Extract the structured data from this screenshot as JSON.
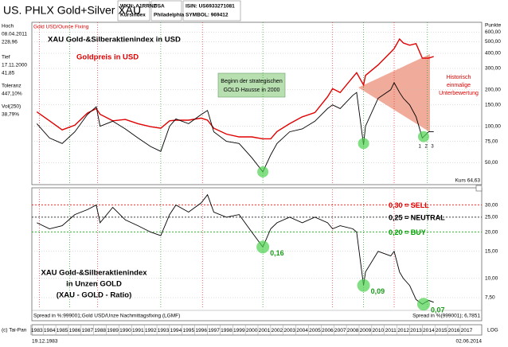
{
  "header": {
    "title": "US. PHLX Gold+Silver XAU",
    "wkn": "WKN: A1RRNZ",
    "kind": "Kursindex",
    "country": "USA",
    "exchange": "Philadelphia",
    "isin": "ISIN: US6933271081",
    "symbol": "SYMBOL: 969412"
  },
  "stats": [
    [
      "Hoch",
      "08.04.2011",
      "228,96"
    ],
    [
      "Tief",
      "17.11.2000",
      "41,85"
    ],
    [
      "Toleranz",
      "447,10%"
    ],
    [
      "Vol(250)",
      "38,79%"
    ]
  ],
  "footer": {
    "copyright": "(c) Tai-Pan",
    "start": "19.12.1983",
    "end": "02.06.2014",
    "scale": "LOG"
  },
  "chart_data": [
    {
      "type": "line",
      "y_axis_label": "Punkte",
      "log_scale": true,
      "annotations": [
        "Gold USD/Ounce Fixing",
        "Beginn der strategischen",
        "GOLD-Hausse in 2000",
        "Historisch",
        "einmalige",
        "Unterbewertung",
        "Kurs 64,63"
      ],
      "x": [
        1983,
        1984,
        1985,
        1986,
        1987,
        1987.7,
        1988,
        1989,
        1990,
        1991,
        1992,
        1992.8,
        1993.5,
        1994,
        1995,
        1996,
        1996.5,
        1997,
        1998,
        1999,
        2000,
        2000.88,
        2001.5,
        2002,
        2003,
        2004,
        2005,
        2006,
        2006.4,
        2007,
        2008,
        2008.3,
        2008.85,
        2009,
        2010,
        2011,
        2011.27,
        2011.7,
        2012,
        2012.5,
        2013,
        2013.5,
        2014,
        2014.4
      ],
      "xlim": [
        1982.6,
        2018.2
      ],
      "ylim": [
        35,
        700
      ],
      "yticks": [
        {
          "value": 50,
          "label": "50,00"
        },
        {
          "value": 75,
          "label": "75,00"
        },
        {
          "value": 100,
          "label": "100,00"
        },
        {
          "value": 150,
          "label": "150,00"
        },
        {
          "value": 200,
          "label": "200,00"
        },
        {
          "value": 300,
          "label": "300,00"
        },
        {
          "value": 400,
          "label": "400,00"
        },
        {
          "value": 500,
          "label": "500,00"
        },
        {
          "value": 600,
          "label": "600,00"
        }
      ],
      "y2lim": [
        120,
        2400
      ],
      "red_lines": [
        1983.2,
        1987.8,
        1996.1,
        2006.4,
        2011.27
      ],
      "green_lines": [
        1985.6,
        1992.8,
        2000.88,
        2008.85,
        2013.9
      ],
      "series": [
        {
          "name": "Goldpreis in USD",
          "color": "#e00000",
          "axis": "y2",
          "values": [
            450,
            380,
            320,
            350,
            440,
            480,
            430,
            380,
            390,
            360,
            340,
            330,
            380,
            385,
            385,
            400,
            385,
            330,
            295,
            280,
            280,
            270,
            270,
            310,
            360,
            410,
            445,
            600,
            700,
            650,
            870,
            950,
            750,
            900,
            1100,
            1400,
            1500,
            1800,
            1670,
            1600,
            1650,
            1250,
            1250,
            1290
          ]
        },
        {
          "name": "XAU Gold-&Silberaktienindex in USD",
          "color": "#000000",
          "values": [
            105,
            80,
            72,
            90,
            125,
            145,
            100,
            110,
            95,
            80,
            68,
            62,
            100,
            115,
            105,
            125,
            135,
            90,
            75,
            72,
            55,
            42,
            58,
            72,
            90,
            95,
            110,
            140,
            150,
            140,
            180,
            190,
            70,
            100,
            170,
            200,
            229,
            190,
            170,
            150,
            120,
            80,
            90,
            90
          ]
        }
      ],
      "markers": [
        {
          "x": 2000.88,
          "y": 42
        },
        {
          "x": 2008.85,
          "y": 72
        },
        {
          "x": 2013.6,
          "y": 82
        }
      ],
      "numbered": [
        {
          "x": 2013.3,
          "label": "1"
        },
        {
          "x": 2013.8,
          "label": "2"
        },
        {
          "x": 2014.3,
          "label": "3"
        }
      ]
    },
    {
      "type": "line",
      "log_scale": true,
      "annotations": [
        "XAU Gold-&Silberaktienindex",
        "in Unzen GOLD",
        "(XAU - GOLD - Ratio)",
        "Spread in %:999001;Gold USD/Unze Nachmittagsfixing (LGMF)",
        "Spread in %(999001); 6,7851"
      ],
      "x": [
        1983,
        1984,
        1985,
        1986,
        1987,
        1987.7,
        1988,
        1989,
        1990,
        1991,
        1992,
        1992.8,
        1993.5,
        1994,
        1995,
        1996,
        1996.5,
        1997,
        1998,
        1999,
        2000,
        2000.88,
        2001.5,
        2002,
        2003,
        2004,
        2005,
        2006,
        2006.4,
        2007,
        2008,
        2008.3,
        2008.85,
        2009,
        2010,
        2011,
        2011.27,
        2011.7,
        2012,
        2012.5,
        2013,
        2013.5,
        2014,
        2014.4
      ],
      "xlim": [
        1982.6,
        2018.2
      ],
      "xticks": [
        1983,
        1984,
        1985,
        1986,
        1987,
        1988,
        1989,
        1990,
        1991,
        1992,
        1993,
        1994,
        1995,
        1996,
        1997,
        1998,
        1999,
        2000,
        2001,
        2002,
        2003,
        2004,
        2005,
        2006,
        2007,
        2008,
        2009,
        2010,
        2011,
        2012,
        2013,
        2014,
        2015,
        2016,
        2017
      ],
      "ylim": [
        6.5,
        37
      ],
      "yticks": [
        {
          "value": 7.5,
          "label": "7,50"
        },
        {
          "value": 10,
          "label": "10,00"
        },
        {
          "value": 15,
          "label": "15,00"
        },
        {
          "value": 20,
          "label": "20,00"
        },
        {
          "value": 25,
          "label": "25,00"
        },
        {
          "value": 30,
          "label": "30,00"
        }
      ],
      "red_lines": [
        1983.2,
        1987.8,
        1996.1,
        2006.4,
        2011.27
      ],
      "green_lines": [
        1985.6,
        1992.8,
        2000.88,
        2008.85,
        2013.9
      ],
      "series": [
        {
          "name": "XAU - GOLD - Ratio",
          "color": "#000000",
          "values": [
            23,
            21,
            22,
            26,
            28,
            30,
            23,
            29,
            24,
            22,
            20,
            19,
            26,
            30,
            27,
            31,
            35,
            27,
            25,
            26,
            20,
            16,
            21,
            23,
            25,
            23,
            25,
            23,
            21,
            22,
            21,
            20,
            9,
            11,
            15,
            14,
            15,
            11,
            10,
            9,
            7.3,
            6.8,
            7.2,
            7
          ]
        }
      ],
      "levels": [
        {
          "value": 30,
          "label": "0,30 = SELL",
          "color": "#e00000"
        },
        {
          "value": 25,
          "label": "0,25 = NEUTRAL",
          "color": "#000000"
        },
        {
          "value": 20,
          "label": "0,20 = BUY",
          "color": "#00a000"
        }
      ],
      "callouts": [
        {
          "x": 2000.88,
          "y": 16,
          "label": "0,16"
        },
        {
          "x": 2008.85,
          "y": 9,
          "label": "0,09"
        },
        {
          "x": 2013.6,
          "y": 6.8,
          "label": "0,07"
        }
      ]
    }
  ]
}
